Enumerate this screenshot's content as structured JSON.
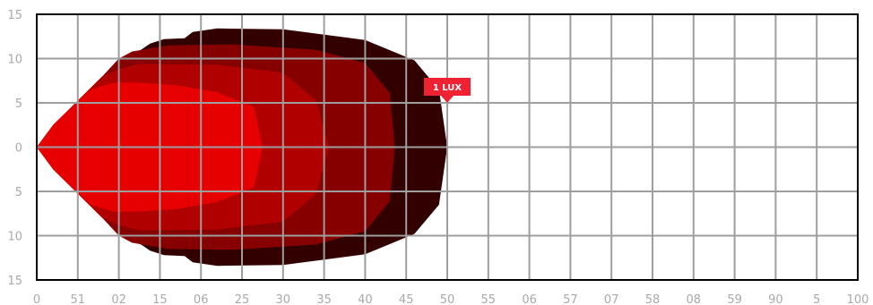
{
  "chart_data": {
    "type": "area",
    "title": "",
    "xlabel": "",
    "ylabel": "",
    "xlim": [
      0,
      100
    ],
    "ylim": [
      -15,
      15
    ],
    "grid": true,
    "x_tick_labels": [
      "0",
      "51",
      "02",
      "15",
      "06",
      "25",
      "30",
      "35",
      "40",
      "45",
      "50",
      "55",
      "06",
      "57",
      "07",
      "58",
      "08",
      "59",
      "90",
      "5",
      "100"
    ],
    "y_tick_labels": [
      "15",
      "10",
      "5",
      "0",
      "5",
      "10",
      "15"
    ],
    "annotation": {
      "label": "1 LUX",
      "x": 50,
      "y": 5,
      "color": "#ee2232"
    },
    "series": [
      {
        "color": "#330000",
        "points": [
          [
            0,
            0
          ],
          [
            2,
            2.5
          ],
          [
            8,
            8
          ],
          [
            13.8,
            11.7
          ],
          [
            15.5,
            12.2
          ],
          [
            18,
            12.3
          ],
          [
            19,
            13
          ],
          [
            22,
            13.4
          ],
          [
            30,
            13.3
          ],
          [
            40,
            12.1
          ],
          [
            46,
            9.8
          ],
          [
            49,
            6.5
          ],
          [
            50,
            0
          ],
          [
            49,
            -6.5
          ],
          [
            46,
            -9.8
          ],
          [
            40,
            -12.1
          ],
          [
            30,
            -13.3
          ],
          [
            22,
            -13.4
          ],
          [
            19,
            -13
          ],
          [
            18,
            -12.3
          ],
          [
            15.5,
            -12.2
          ],
          [
            13.8,
            -11.7
          ],
          [
            8,
            -8
          ],
          [
            2,
            -2.5
          ]
        ]
      },
      {
        "color": "#860000",
        "points": [
          [
            0,
            0
          ],
          [
            2,
            2.5
          ],
          [
            8,
            8
          ],
          [
            10,
            10
          ],
          [
            11.6,
            10.8
          ],
          [
            16,
            11.5
          ],
          [
            24,
            11.6
          ],
          [
            34,
            11
          ],
          [
            40,
            9.5
          ],
          [
            43,
            6.1
          ],
          [
            43.6,
            0
          ],
          [
            43,
            -6.1
          ],
          [
            40,
            -9.5
          ],
          [
            34,
            -11
          ],
          [
            24,
            -11.6
          ],
          [
            16,
            -11.5
          ],
          [
            11.6,
            -10.8
          ],
          [
            10,
            -10
          ],
          [
            8,
            -8
          ],
          [
            2,
            -2.5
          ]
        ]
      },
      {
        "color": "#b00000",
        "points": [
          [
            0,
            0
          ],
          [
            2,
            2.5
          ],
          [
            8,
            8
          ],
          [
            10,
            8.8
          ],
          [
            12.5,
            9.4
          ],
          [
            22,
            9.3
          ],
          [
            30,
            8.4
          ],
          [
            34,
            5.3
          ],
          [
            35.6,
            0
          ],
          [
            34,
            -5.3
          ],
          [
            30,
            -8.4
          ],
          [
            22,
            -9.3
          ],
          [
            12.5,
            -9.4
          ],
          [
            10,
            -8.8
          ],
          [
            8,
            -8
          ],
          [
            2,
            -2.5
          ]
        ]
      },
      {
        "color": "#e60000",
        "points": [
          [
            0,
            0
          ],
          [
            2,
            2.5
          ],
          [
            6.5,
            6.5
          ],
          [
            9.5,
            7.3
          ],
          [
            12,
            7.3
          ],
          [
            17,
            7
          ],
          [
            22,
            6.2
          ],
          [
            26.5,
            4.5
          ],
          [
            27.5,
            0
          ],
          [
            26.5,
            -4.5
          ],
          [
            22,
            -6.2
          ],
          [
            17,
            -7
          ],
          [
            12,
            -7.3
          ],
          [
            9.5,
            -7.3
          ],
          [
            6.5,
            -6.5
          ],
          [
            2,
            -2.5
          ]
        ]
      }
    ]
  }
}
